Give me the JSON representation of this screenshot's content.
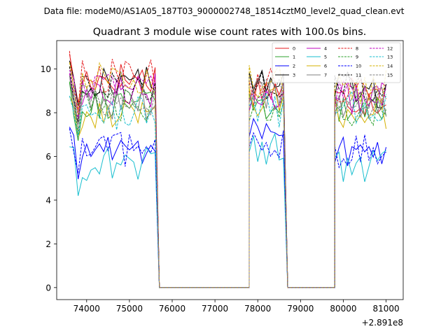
{
  "chart_data": {
    "type": "line",
    "suptitle": "Data file: modeM0/AS1A05_187T03_9000002748_18514cztM0_level2_quad_clean.evt",
    "title": "Quadrant 3 module wise count rates with 100.0s bins.",
    "xlabel": "",
    "ylabel": "",
    "x_offset_label": "+2.891e8",
    "xlim": [
      73300,
      81400
    ],
    "ylim": [
      -0.55,
      11.3
    ],
    "xticks": [
      74000,
      75000,
      76000,
      77000,
      78000,
      79000,
      80000,
      81000
    ],
    "xtick_labels": [
      "74000",
      "75000",
      "76000",
      "77000",
      "78000",
      "79000",
      "80000",
      "81000"
    ],
    "yticks": [
      0,
      2,
      4,
      6,
      8,
      10
    ],
    "ytick_labels": [
      "0",
      "2",
      "4",
      "6",
      "8",
      "10"
    ],
    "segments": [
      {
        "start": 73600,
        "end": 75600
      },
      {
        "start": 77800,
        "end": 78600
      },
      {
        "start": 79800,
        "end": 81000
      }
    ],
    "gap_points": [
      75700,
      77800,
      78600,
      79800
    ],
    "series": [
      {
        "name": "0",
        "color": "#e41a1c",
        "style": "solid",
        "levels": [
          9.6,
          9.1,
          8.6
        ]
      },
      {
        "name": "1",
        "color": "#2ca02c",
        "style": "solid",
        "levels": [
          8.4,
          8.3,
          8.2
        ]
      },
      {
        "name": "2",
        "color": "#0000ff",
        "style": "solid",
        "levels": [
          6.4,
          7.3,
          6.3
        ]
      },
      {
        "name": "3",
        "color": "#000000",
        "style": "solid",
        "levels": [
          9.5,
          9.6,
          9.0
        ]
      },
      {
        "name": "4",
        "color": "#bf00bf",
        "style": "solid",
        "levels": [
          9.0,
          8.8,
          8.7
        ]
      },
      {
        "name": "5",
        "color": "#17becf",
        "style": "solid",
        "levels": [
          5.7,
          6.3,
          5.6
        ]
      },
      {
        "name": "6",
        "color": "#d4b000",
        "style": "solid",
        "levels": [
          8.1,
          8.6,
          8.0
        ]
      },
      {
        "name": "7",
        "color": "#7f7f7f",
        "style": "solid",
        "levels": [
          8.5,
          8.9,
          8.4
        ]
      },
      {
        "name": "8",
        "color": "#e41a1c",
        "style": "dashed",
        "levels": [
          9.7,
          9.3,
          9.0
        ]
      },
      {
        "name": "9",
        "color": "#2ca02c",
        "style": "dashed",
        "levels": [
          8.3,
          8.4,
          8.1
        ]
      },
      {
        "name": "10",
        "color": "#0000ff",
        "style": "dashed",
        "levels": [
          6.3,
          6.6,
          6.2
        ]
      },
      {
        "name": "11",
        "color": "#000000",
        "style": "dashed",
        "levels": [
          9.2,
          9.4,
          9.1
        ]
      },
      {
        "name": "12",
        "color": "#bf00bf",
        "style": "dashed",
        "levels": [
          9.1,
          9.0,
          8.8
        ]
      },
      {
        "name": "13",
        "color": "#17becf",
        "style": "dashed",
        "levels": [
          8.0,
          8.1,
          8.3
        ]
      },
      {
        "name": "14",
        "color": "#d4b000",
        "style": "dashed",
        "levels": [
          9.6,
          9.4,
          9.2
        ]
      },
      {
        "name": "15",
        "color": "#7f7f7f",
        "style": "dashed",
        "levels": [
          8.6,
          8.8,
          8.5
        ]
      }
    ],
    "legend_position": "top-right",
    "legend_columns": 4,
    "grid": false
  }
}
